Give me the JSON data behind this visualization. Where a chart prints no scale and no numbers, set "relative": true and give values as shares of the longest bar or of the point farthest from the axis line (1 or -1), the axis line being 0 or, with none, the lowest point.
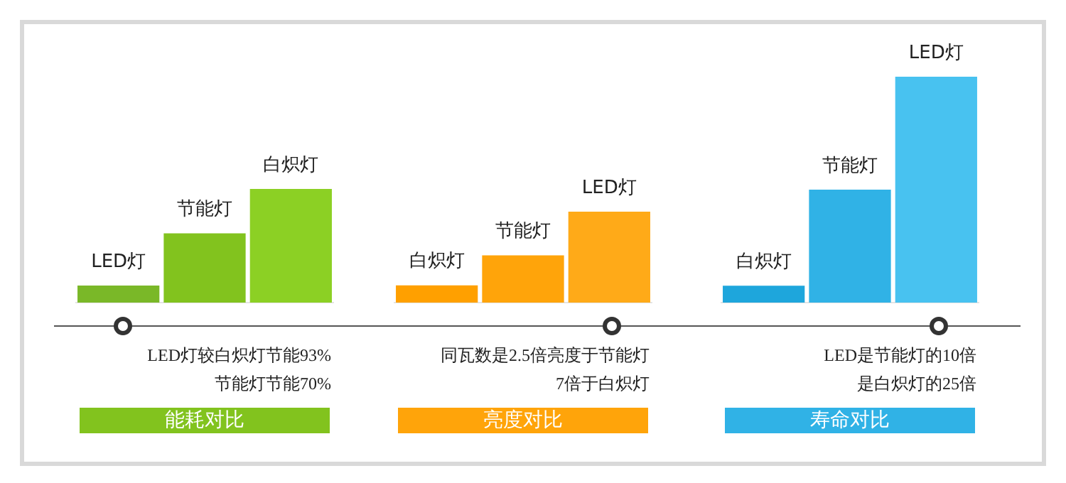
{
  "chart_data": [
    {
      "type": "bar",
      "title": "能耗对比",
      "categories": [
        "LED灯",
        "节能灯",
        "白炽灯"
      ],
      "values": [
        0.15,
        0.61,
        1
      ],
      "colors": [
        "#7ab828",
        "#82c31e",
        "#8cd024"
      ],
      "relative": true,
      "annotations": [
        "LED灯较白炽灯节能93%",
        "节能灯节能70%"
      ]
    },
    {
      "type": "bar",
      "title": "亮度对比",
      "categories": [
        "白炽灯",
        "节能灯",
        "LED灯"
      ],
      "values": [
        0.19,
        0.52,
        1
      ],
      "colors": [
        "#ffa000",
        "#ffa40a",
        "#ffaa18"
      ],
      "relative": true,
      "annotations": [
        "同瓦数是2.5倍亮度于节能灯",
        "7倍于白炽灯"
      ]
    },
    {
      "type": "bar",
      "title": "寿命对比",
      "categories": [
        "白炽灯",
        "节能灯",
        "LED灯"
      ],
      "values": [
        0.075,
        0.5,
        1
      ],
      "colors": [
        "#1ea6dc",
        "#30b2e6",
        "#48c2f0"
      ],
      "relative": true,
      "annotations": [
        "LED是节能灯的10倍",
        "是白炽灯的25倍"
      ]
    }
  ]
}
